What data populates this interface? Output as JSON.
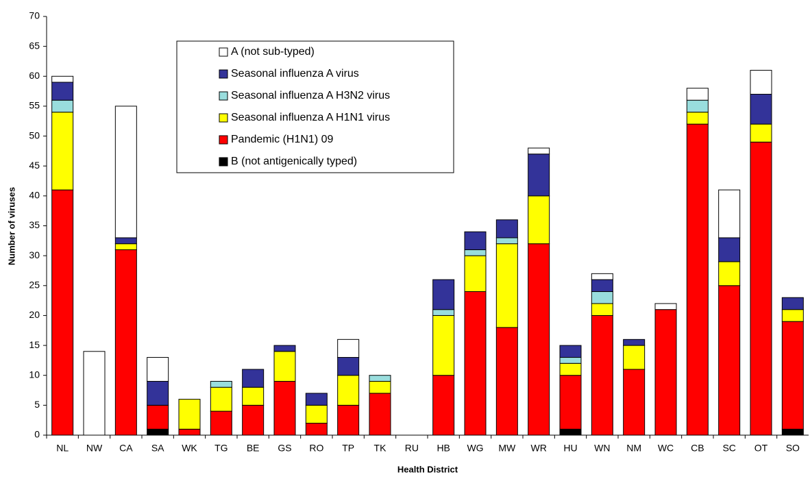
{
  "chart_data": {
    "type": "stacked_bar",
    "x_label": "Health District",
    "y_label": "Number of viruses",
    "categories": [
      "NL",
      "NW",
      "CA",
      "SA",
      "WK",
      "TG",
      "BE",
      "GS",
      "RO",
      "TP",
      "TK",
      "RU",
      "HB",
      "WG",
      "MW",
      "WR",
      "HU",
      "WN",
      "NM",
      "WC",
      "CB",
      "SC",
      "OT",
      "SO"
    ],
    "series": [
      {
        "name": "A (not sub-typed)",
        "color": "#ffffff",
        "values": [
          1,
          14,
          22,
          4,
          0,
          0,
          0,
          0,
          0,
          3,
          0,
          0,
          0,
          0,
          0,
          1,
          0,
          1,
          0,
          1,
          2,
          8,
          4,
          0
        ]
      },
      {
        "name": "Seasonal influenza A virus",
        "color": "#333399",
        "values": [
          3,
          0,
          1,
          4,
          0,
          0,
          3,
          1,
          2,
          3,
          0,
          0,
          5,
          3,
          3,
          7,
          2,
          2,
          1,
          0,
          0,
          4,
          5,
          2
        ]
      },
      {
        "name": "Seasonal influenza A H3N2 virus",
        "color": "#99dddd",
        "values": [
          2,
          0,
          0,
          0,
          0,
          1,
          0,
          0,
          0,
          0,
          1,
          0,
          1,
          1,
          1,
          0,
          1,
          2,
          0,
          0,
          2,
          0,
          0,
          0
        ]
      },
      {
        "name": "Seasonal influenza A H1N1 virus",
        "color": "#ffff00",
        "values": [
          13,
          0,
          1,
          0,
          5,
          4,
          3,
          5,
          3,
          5,
          2,
          0,
          10,
          6,
          14,
          8,
          2,
          2,
          4,
          0,
          2,
          4,
          3,
          2
        ]
      },
      {
        "name": "Pandemic (H1N1) 09",
        "color": "#ff0000",
        "values": [
          41,
          0,
          31,
          4,
          1,
          4,
          5,
          9,
          2,
          5,
          7,
          0,
          10,
          24,
          18,
          32,
          9,
          20,
          11,
          21,
          52,
          25,
          49,
          18
        ]
      },
      {
        "name": "B (not antigenically typed)",
        "color": "#000000",
        "values": [
          0,
          0,
          0,
          1,
          0,
          0,
          0,
          0,
          0,
          0,
          0,
          0,
          0,
          0,
          0,
          0,
          1,
          0,
          0,
          0,
          0,
          0,
          0,
          1
        ]
      }
    ],
    "ylim": [
      0,
      70
    ],
    "yticks": [
      0,
      5,
      10,
      15,
      20,
      25,
      30,
      35,
      40,
      45,
      50,
      55,
      60,
      65,
      70
    ]
  }
}
